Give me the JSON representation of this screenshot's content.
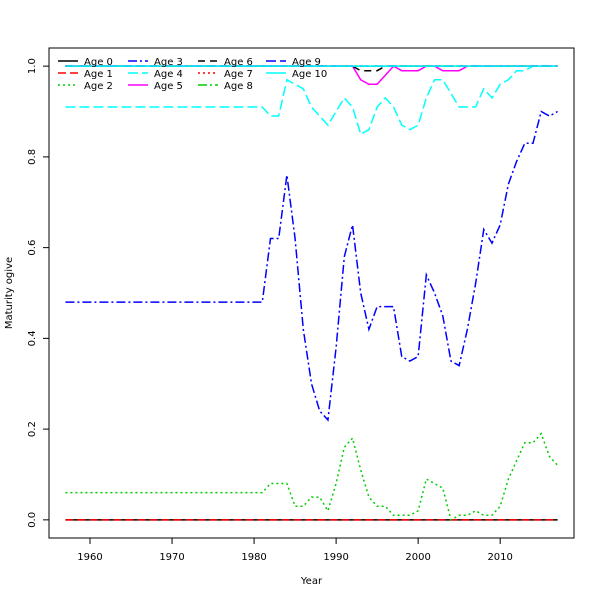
{
  "chart_data": {
    "type": "line",
    "xlabel": "Year",
    "ylabel": "Maturity ogive",
    "xlim": [
      1955,
      2019
    ],
    "ylim": [
      -0.04,
      1.04
    ],
    "x_ticks": [
      1960,
      1970,
      1980,
      1990,
      2000,
      2010
    ],
    "y_ticks": [
      0.0,
      0.2,
      0.4,
      0.6,
      0.8,
      1.0
    ],
    "x_tick_labels": [
      "1960",
      "1970",
      "1980",
      "1990",
      "2000",
      "2010"
    ],
    "y_tick_labels": [
      "0.0",
      "0.2",
      "0.4",
      "0.6",
      "0.8",
      "1.0"
    ],
    "legend_position": "top-left",
    "grid": false,
    "x": [
      1957,
      1958,
      1959,
      1960,
      1961,
      1962,
      1963,
      1964,
      1965,
      1966,
      1967,
      1968,
      1969,
      1970,
      1971,
      1972,
      1973,
      1974,
      1975,
      1976,
      1977,
      1978,
      1979,
      1980,
      1981,
      1982,
      1983,
      1984,
      1985,
      1986,
      1987,
      1988,
      1989,
      1990,
      1991,
      1992,
      1993,
      1994,
      1995,
      1996,
      1997,
      1998,
      1999,
      2000,
      2001,
      2002,
      2003,
      2004,
      2005,
      2006,
      2007,
      2008,
      2009,
      2010,
      2011,
      2012,
      2013,
      2014,
      2015,
      2016,
      2017
    ],
    "series": [
      {
        "name": "Age 0",
        "color": "#000000",
        "dash": "",
        "values": [
          0,
          0,
          0,
          0,
          0,
          0,
          0,
          0,
          0,
          0,
          0,
          0,
          0,
          0,
          0,
          0,
          0,
          0,
          0,
          0,
          0,
          0,
          0,
          0,
          0,
          0,
          0,
          0,
          0,
          0,
          0,
          0,
          0,
          0,
          0,
          0,
          0,
          0,
          0,
          0,
          0,
          0,
          0,
          0,
          0,
          0,
          0,
          0,
          0,
          0,
          0,
          0,
          0,
          0,
          0,
          0,
          0,
          0,
          0,
          0,
          0
        ]
      },
      {
        "name": "Age 1",
        "color": "#ff0000",
        "dash": "8,4",
        "values": [
          0,
          0,
          0,
          0,
          0,
          0,
          0,
          0,
          0,
          0,
          0,
          0,
          0,
          0,
          0,
          0,
          0,
          0,
          0,
          0,
          0,
          0,
          0,
          0,
          0,
          0,
          0,
          0,
          0,
          0,
          0,
          0,
          0,
          0,
          0,
          0,
          0,
          0,
          0,
          0,
          0,
          0,
          0,
          0,
          0,
          0,
          0,
          0,
          0,
          0,
          0,
          0,
          0,
          0,
          0,
          0,
          0,
          0,
          0,
          0,
          0
        ]
      },
      {
        "name": "Age 2",
        "color": "#00cd00",
        "dash": "2,3",
        "values": [
          0.06,
          0.06,
          0.06,
          0.06,
          0.06,
          0.06,
          0.06,
          0.06,
          0.06,
          0.06,
          0.06,
          0.06,
          0.06,
          0.06,
          0.06,
          0.06,
          0.06,
          0.06,
          0.06,
          0.06,
          0.06,
          0.06,
          0.06,
          0.06,
          0.06,
          0.08,
          0.08,
          0.08,
          0.03,
          0.03,
          0.05,
          0.05,
          0.02,
          0.08,
          0.16,
          0.18,
          0.11,
          0.05,
          0.03,
          0.03,
          0.01,
          0.01,
          0.01,
          0.02,
          0.09,
          0.08,
          0.07,
          0.0,
          0.01,
          0.01,
          0.02,
          0.01,
          0.01,
          0.03,
          0.09,
          0.13,
          0.17,
          0.17,
          0.19,
          0.14,
          0.12
        ]
      },
      {
        "name": "Age 3",
        "color": "#0000ff",
        "dash": "9,3,2,3",
        "values": [
          0.48,
          0.48,
          0.48,
          0.48,
          0.48,
          0.48,
          0.48,
          0.48,
          0.48,
          0.48,
          0.48,
          0.48,
          0.48,
          0.48,
          0.48,
          0.48,
          0.48,
          0.48,
          0.48,
          0.48,
          0.48,
          0.48,
          0.48,
          0.48,
          0.48,
          0.62,
          0.62,
          0.76,
          0.62,
          0.42,
          0.3,
          0.24,
          0.22,
          0.38,
          0.58,
          0.65,
          0.5,
          0.42,
          0.47,
          0.47,
          0.47,
          0.36,
          0.35,
          0.36,
          0.54,
          0.5,
          0.45,
          0.35,
          0.34,
          0.42,
          0.52,
          0.64,
          0.61,
          0.65,
          0.74,
          0.79,
          0.83,
          0.83,
          0.9,
          0.89,
          0.9
        ]
      },
      {
        "name": "Age 4",
        "color": "#00ffff",
        "dash": "10,4",
        "values": [
          0.91,
          0.91,
          0.91,
          0.91,
          0.91,
          0.91,
          0.91,
          0.91,
          0.91,
          0.91,
          0.91,
          0.91,
          0.91,
          0.91,
          0.91,
          0.91,
          0.91,
          0.91,
          0.91,
          0.91,
          0.91,
          0.91,
          0.91,
          0.91,
          0.91,
          0.89,
          0.89,
          0.97,
          0.96,
          0.95,
          0.91,
          0.89,
          0.87,
          0.9,
          0.93,
          0.91,
          0.85,
          0.86,
          0.91,
          0.93,
          0.91,
          0.87,
          0.86,
          0.87,
          0.93,
          0.97,
          0.97,
          0.94,
          0.91,
          0.91,
          0.91,
          0.95,
          0.93,
          0.96,
          0.97,
          0.99,
          0.99,
          1.0,
          1.0,
          1.0,
          1.0
        ]
      },
      {
        "name": "Age 5",
        "color": "#ff00ff",
        "dash": "",
        "values": [
          1,
          1,
          1,
          1,
          1,
          1,
          1,
          1,
          1,
          1,
          1,
          1,
          1,
          1,
          1,
          1,
          1,
          1,
          1,
          1,
          1,
          1,
          1,
          1,
          1,
          1,
          1,
          1,
          1,
          1,
          1,
          1,
          1,
          1,
          1,
          1,
          0.97,
          0.96,
          0.96,
          0.98,
          1.0,
          0.99,
          0.99,
          0.99,
          1.0,
          1.0,
          0.99,
          0.99,
          0.99,
          1.0,
          1.0,
          1.0,
          1.0,
          1.0,
          1.0,
          1.0,
          1.0,
          1.0,
          1.0,
          1.0,
          1.0
        ]
      },
      {
        "name": "Age 6",
        "color": "#000000",
        "dash": "7,5",
        "values": [
          1,
          1,
          1,
          1,
          1,
          1,
          1,
          1,
          1,
          1,
          1,
          1,
          1,
          1,
          1,
          1,
          1,
          1,
          1,
          1,
          1,
          1,
          1,
          1,
          1,
          1,
          1,
          1,
          1,
          1,
          1,
          1,
          1,
          1,
          1,
          1,
          0.99,
          0.99,
          0.99,
          1,
          1,
          1,
          1,
          1,
          1,
          1,
          1,
          1,
          1,
          1,
          1,
          1,
          1,
          1,
          1,
          1,
          1,
          1,
          1,
          1,
          1
        ]
      },
      {
        "name": "Age 7",
        "color": "#ff0000",
        "dash": "2,3",
        "values": [
          1,
          1,
          1,
          1,
          1,
          1,
          1,
          1,
          1,
          1,
          1,
          1,
          1,
          1,
          1,
          1,
          1,
          1,
          1,
          1,
          1,
          1,
          1,
          1,
          1,
          1,
          1,
          1,
          1,
          1,
          1,
          1,
          1,
          1,
          1,
          1,
          1,
          1,
          1,
          1,
          1,
          1,
          1,
          1,
          1,
          1,
          1,
          1,
          1,
          1,
          1,
          1,
          1,
          1,
          1,
          1,
          1,
          1,
          1,
          1,
          1
        ]
      },
      {
        "name": "Age 8",
        "color": "#00cd00",
        "dash": "9,3,2,3",
        "values": [
          1,
          1,
          1,
          1,
          1,
          1,
          1,
          1,
          1,
          1,
          1,
          1,
          1,
          1,
          1,
          1,
          1,
          1,
          1,
          1,
          1,
          1,
          1,
          1,
          1,
          1,
          1,
          1,
          1,
          1,
          1,
          1,
          1,
          1,
          1,
          1,
          1,
          1,
          1,
          1,
          1,
          1,
          1,
          1,
          1,
          1,
          1,
          1,
          1,
          1,
          1,
          1,
          1,
          1,
          1,
          1,
          1,
          1,
          1,
          1,
          1
        ]
      },
      {
        "name": "Age 9",
        "color": "#0000ff",
        "dash": "10,4",
        "values": [
          1,
          1,
          1,
          1,
          1,
          1,
          1,
          1,
          1,
          1,
          1,
          1,
          1,
          1,
          1,
          1,
          1,
          1,
          1,
          1,
          1,
          1,
          1,
          1,
          1,
          1,
          1,
          1,
          1,
          1,
          1,
          1,
          1,
          1,
          1,
          1,
          1,
          1,
          1,
          1,
          1,
          1,
          1,
          1,
          1,
          1,
          1,
          1,
          1,
          1,
          1,
          1,
          1,
          1,
          1,
          1,
          1,
          1,
          1,
          1,
          1
        ]
      },
      {
        "name": "Age 10",
        "color": "#00ffff",
        "dash": "",
        "values": [
          1,
          1,
          1,
          1,
          1,
          1,
          1,
          1,
          1,
          1,
          1,
          1,
          1,
          1,
          1,
          1,
          1,
          1,
          1,
          1,
          1,
          1,
          1,
          1,
          1,
          1,
          1,
          1,
          1,
          1,
          1,
          1,
          1,
          1,
          1,
          1,
          1,
          1,
          1,
          1,
          1,
          1,
          1,
          1,
          1,
          1,
          1,
          1,
          1,
          1,
          1,
          1,
          1,
          1,
          1,
          1,
          1,
          1,
          1,
          1,
          1
        ]
      }
    ]
  }
}
